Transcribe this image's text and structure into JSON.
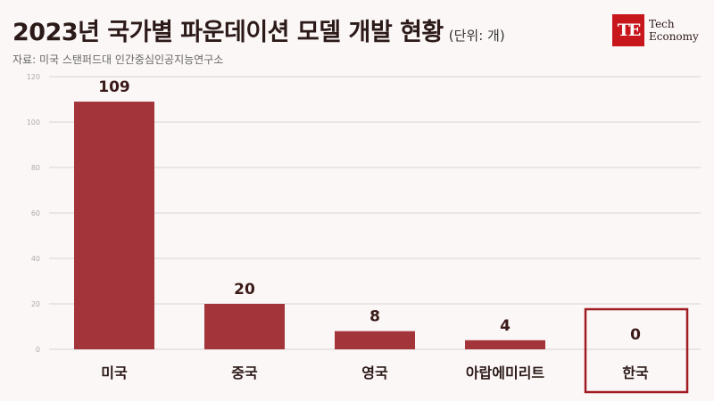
{
  "header": {
    "title": "2023년 국가별 파운데이션 모델 개발 현황",
    "unit": "(단위: 개)",
    "source": "자료: 미국 스탠퍼드대 인간중심인공지능연구소"
  },
  "logo": {
    "mark": "TE",
    "line1": "Tech",
    "line2": "Economy"
  },
  "colors": {
    "bar": "#a2343a",
    "highlight_box": "#a01c22",
    "grid": "#d9d3d3"
  },
  "chart_data": {
    "type": "bar",
    "title": "2023년 국가별 파운데이션 모델 개발 현황",
    "ylabel": "",
    "xlabel": "",
    "categories": [
      "미국",
      "중국",
      "영국",
      "아랍에미리트",
      "한국"
    ],
    "values": [
      109,
      20,
      8,
      4,
      0
    ],
    "data_labels": [
      "109",
      "20",
      "8",
      "4",
      "0"
    ],
    "ylim": [
      0,
      120
    ],
    "yticks": [
      0,
      20,
      40,
      60,
      80,
      100,
      120
    ],
    "grid": true,
    "highlight_category": "한국"
  }
}
